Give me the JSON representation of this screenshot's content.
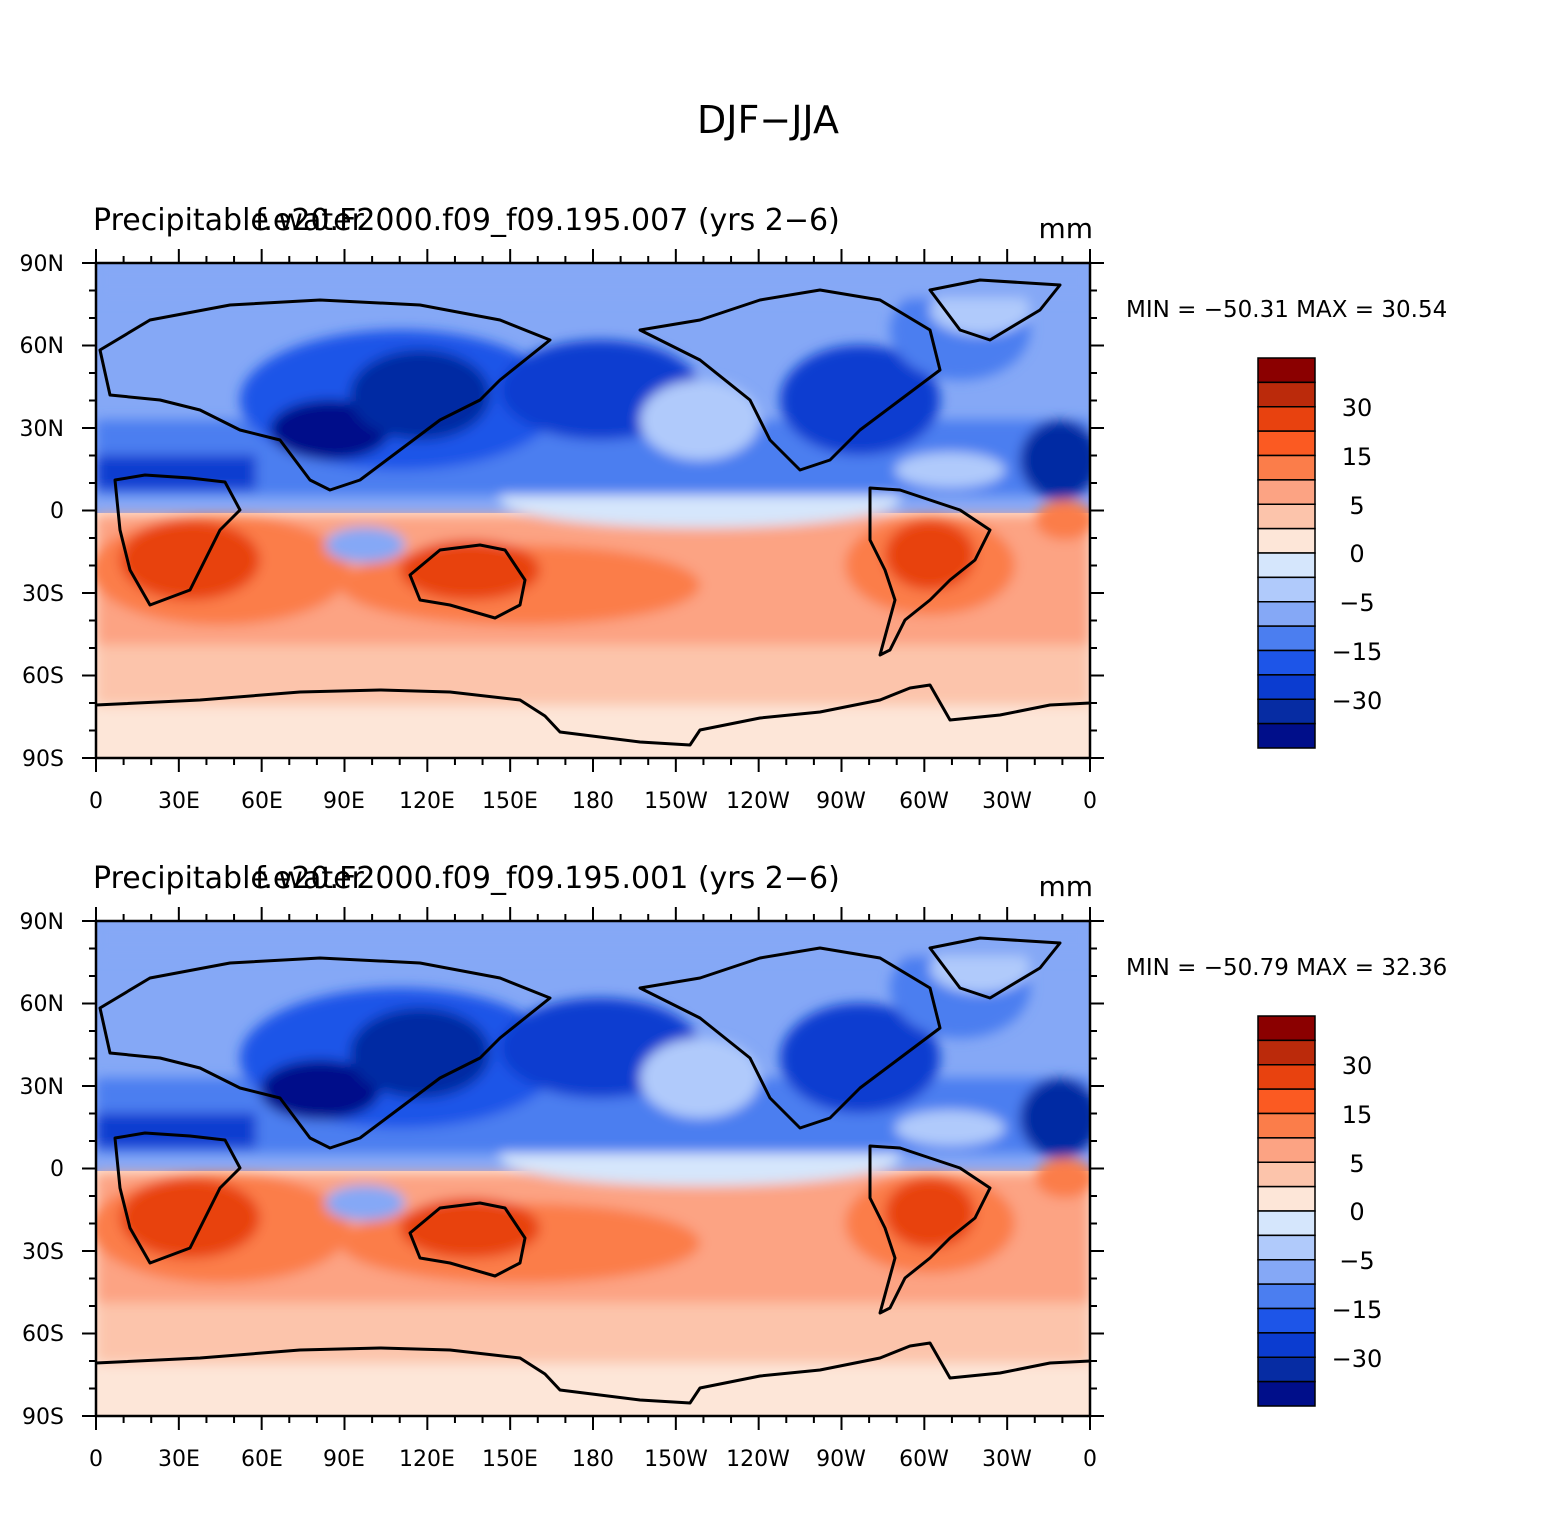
{
  "figure_title": "DJF−JJA",
  "colormap": {
    "levels": [
      "30",
      "15",
      "5",
      "0",
      "−5",
      "−15",
      "−30"
    ],
    "colors": [
      "#8b0000",
      "#bb2a0b",
      "#e8420f",
      "#fb5a22",
      "#fb7d4a",
      "#fca383",
      "#fcc4ab",
      "#fde6d8",
      "#d5e6fc",
      "#b0cafb",
      "#85a8f6",
      "#4b7ef0",
      "#1d55e8",
      "#0b3cd0",
      "#062ca3",
      "#000e8a"
    ]
  },
  "panels": [
    {
      "title_left": "Precipitable water",
      "title_center": "f.e20.F2000.f09_f09.195.007 (yrs 2−6)",
      "units": "mm",
      "stats": "MIN = −50.31  MAX =   30.54",
      "lat_ticks": [
        "90N",
        "60N",
        "30N",
        "0",
        "30S",
        "60S",
        "90S"
      ],
      "lon_ticks": [
        "0",
        "30E",
        "60E",
        "90E",
        "120E",
        "150E",
        "180",
        "150W",
        "120W",
        "90W",
        "60W",
        "30W",
        "0"
      ]
    },
    {
      "title_left": "Precipitable water",
      "title_center": "f.e20.F2000.f09_f09.195.001 (yrs 2−6)",
      "units": "mm",
      "stats": "MIN = −50.79  MAX =   32.36",
      "lat_ticks": [
        "90N",
        "60N",
        "30N",
        "0",
        "30S",
        "60S",
        "90S"
      ],
      "lon_ticks": [
        "0",
        "30E",
        "60E",
        "90E",
        "120E",
        "150E",
        "180",
        "150W",
        "120W",
        "90W",
        "60W",
        "30W",
        "0"
      ]
    }
  ]
}
